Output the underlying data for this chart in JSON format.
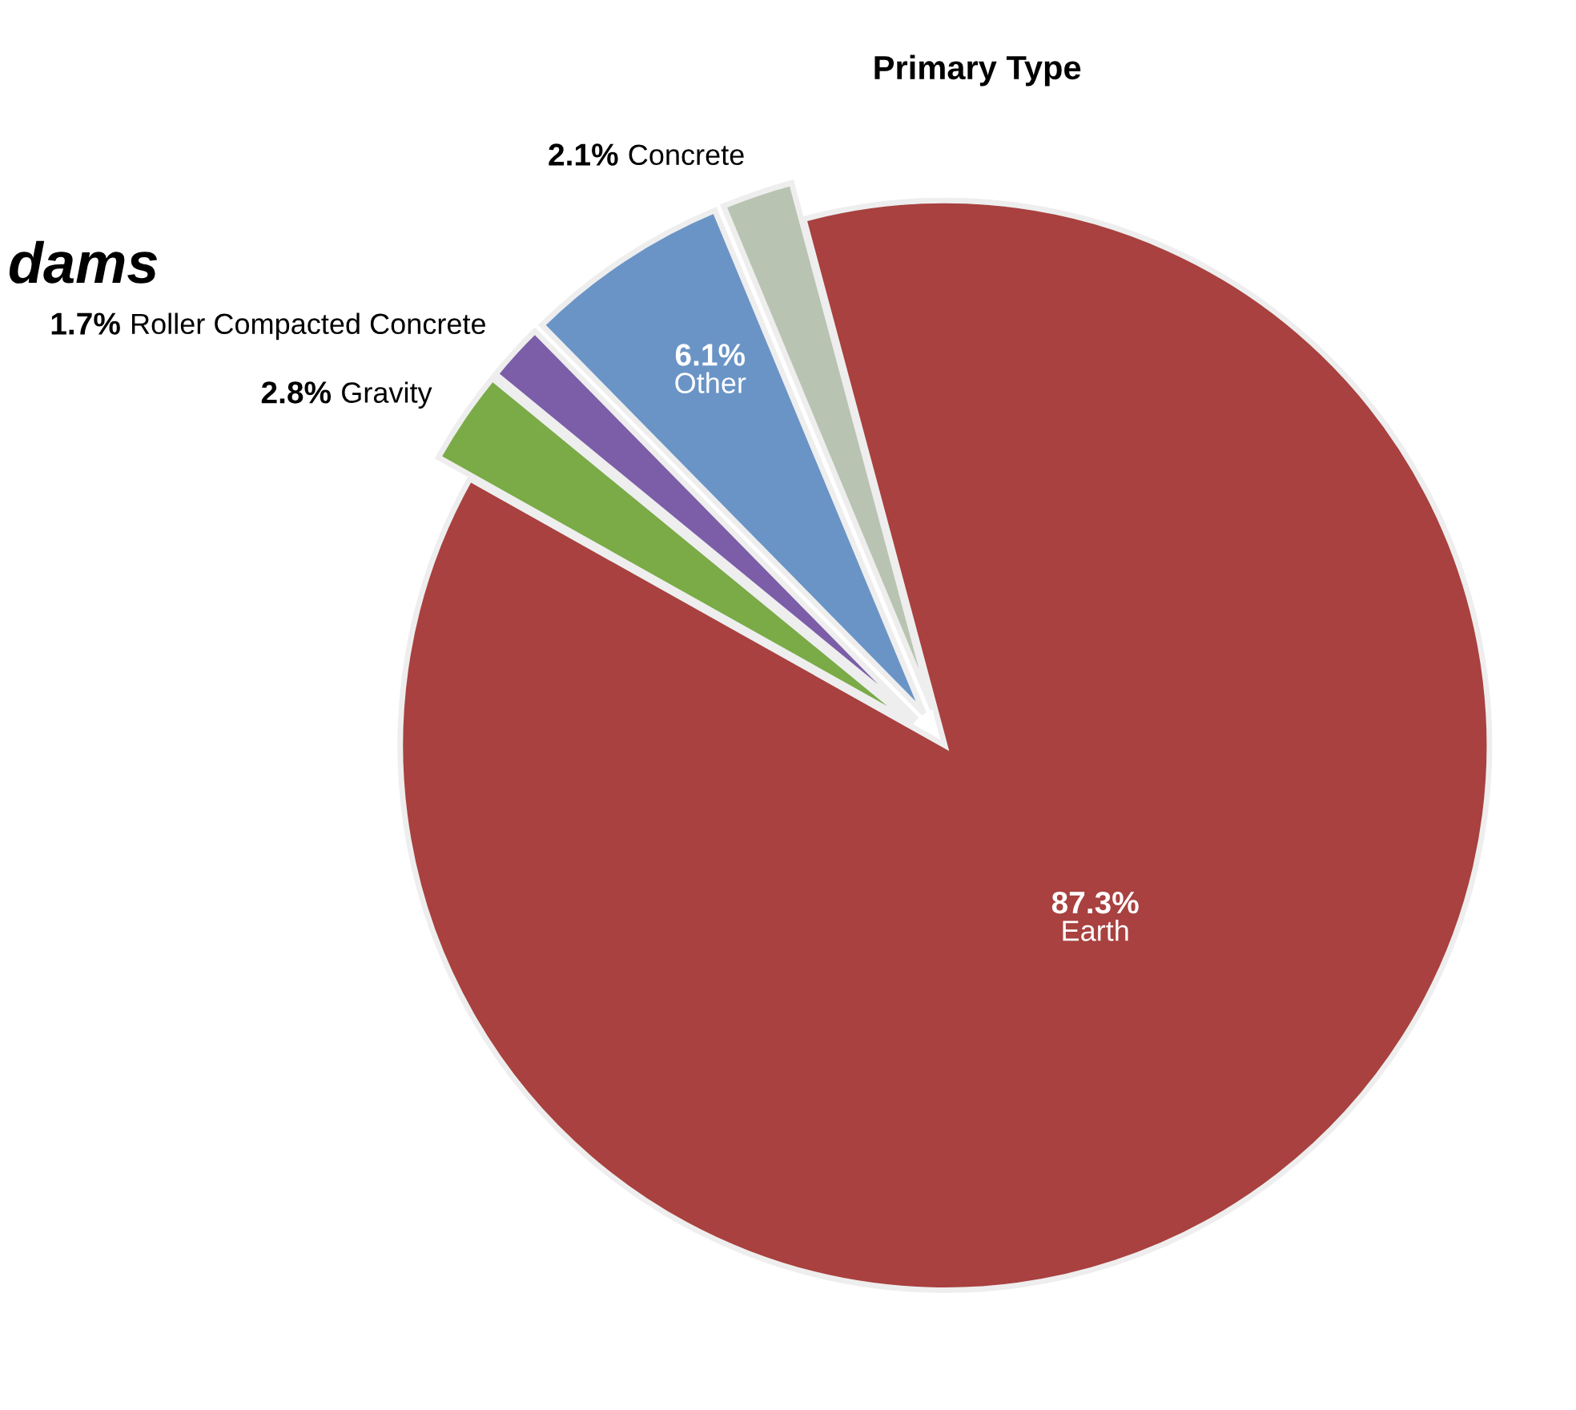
{
  "chart_data": {
    "type": "pie",
    "title": "Primary Type",
    "annotations": [
      "dams"
    ],
    "categories": [
      "Earth",
      "Gravity",
      "Roller Compacted Concrete",
      "Other",
      "Concrete"
    ],
    "values": [
      87.3,
      2.8,
      1.7,
      6.1,
      2.1
    ],
    "colors": [
      "#a8413f",
      "#7aab47",
      "#7b5ea7",
      "#6a94c6",
      "#b9c3b1"
    ],
    "value_labels": [
      "87.3%",
      "2.8%",
      "1.7%",
      "6.1%",
      "2.1%"
    ],
    "legend": false
  }
}
